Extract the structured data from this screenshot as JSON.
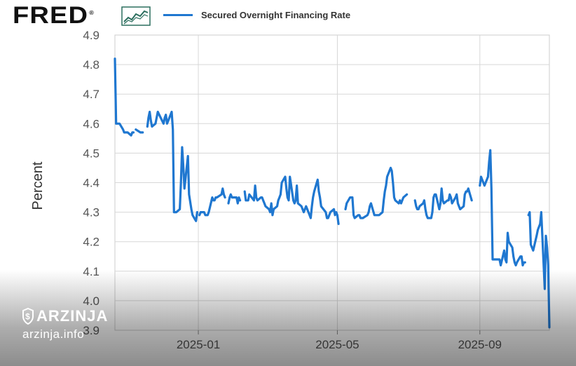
{
  "header": {
    "logo_text": "FRED",
    "logo_registered": "®",
    "logo_icon": "line-graph-icon",
    "legend_label": "Secured Overnight Financing Rate",
    "legend_color": "#1f77d0"
  },
  "watermark": {
    "brand": "ARZINJA",
    "url": "arzinja.info",
    "icon": "dollar-shield-icon"
  },
  "chart_data": {
    "type": "line",
    "title": "",
    "xlabel": "",
    "ylabel": "Percent",
    "ylim": [
      3.9,
      4.9
    ],
    "yticks": [
      "3.9",
      "4.0",
      "4.1",
      "4.2",
      "4.3",
      "4.4",
      "4.5",
      "4.6",
      "4.7",
      "4.8",
      "4.9"
    ],
    "xlim": [
      "2024-10-21",
      "2025-10-31"
    ],
    "xticks": [
      {
        "date": "2025-01-01",
        "label": "2025-01"
      },
      {
        "date": "2025-05-01",
        "label": "2025-05"
      },
      {
        "date": "2025-09-01",
        "label": "2025-09"
      }
    ],
    "grid": true,
    "legend": "top-left",
    "series": [
      {
        "name": "Secured Overnight Financing Rate",
        "color": "#1f77d0",
        "segments": [
          {
            "x": [
              "2024-10-21",
              "2024-10-22",
              "2024-10-23",
              "2024-10-24",
              "2024-10-25",
              "2024-10-28",
              "2024-10-29",
              "2024-10-30",
              "2024-10-31",
              "2024-11-01",
              "2024-11-04",
              "2024-11-05",
              "2024-11-06"
            ],
            "y": [
              4.82,
              4.6,
              4.6,
              4.6,
              4.6,
              4.58,
              4.57,
              4.57,
              4.57,
              4.57,
              4.56,
              4.57,
              4.57
            ]
          },
          {
            "x": [
              "2024-11-08",
              "2024-11-12",
              "2024-11-13",
              "2024-11-14"
            ],
            "y": [
              4.58,
              4.57,
              4.57,
              4.57
            ]
          },
          {
            "x": [
              "2024-11-18",
              "2024-11-19",
              "2024-11-20",
              "2024-11-21",
              "2024-11-22",
              "2024-11-25",
              "2024-11-26",
              "2024-11-27",
              "2024-12-02",
              "2024-12-03",
              "2024-12-04",
              "2024-12-05",
              "2024-12-06",
              "2024-12-09",
              "2024-12-10",
              "2024-12-11",
              "2024-12-12",
              "2024-12-13",
              "2024-12-16",
              "2024-12-17",
              "2024-12-18",
              "2024-12-19",
              "2024-12-20",
              "2024-12-23",
              "2024-12-24",
              "2024-12-26",
              "2024-12-27",
              "2024-12-30",
              "2024-12-31"
            ],
            "y": [
              4.59,
              4.62,
              4.64,
              4.61,
              4.59,
              4.6,
              4.62,
              4.64,
              4.6,
              4.62,
              4.63,
              4.6,
              4.61,
              4.64,
              4.58,
              4.3,
              4.3,
              4.3,
              4.31,
              4.4,
              4.52,
              4.46,
              4.38,
              4.49,
              4.36,
              4.31,
              4.29,
              4.27,
              4.3
            ]
          },
          {
            "x": [
              "2025-01-02",
              "2025-01-03",
              "2025-01-06",
              "2025-01-07",
              "2025-01-08",
              "2025-01-09",
              "2025-01-10",
              "2025-01-13",
              "2025-01-14",
              "2025-01-15",
              "2025-01-16",
              "2025-01-17",
              "2025-01-21",
              "2025-01-22",
              "2025-01-23",
              "2025-01-24"
            ],
            "y": [
              4.29,
              4.3,
              4.3,
              4.29,
              4.29,
              4.29,
              4.3,
              4.35,
              4.34,
              4.34,
              4.35,
              4.35,
              4.36,
              4.38,
              4.36,
              4.35
            ]
          },
          {
            "x": [
              "2025-01-27",
              "2025-01-28",
              "2025-01-29",
              "2025-01-30",
              "2025-01-31",
              "2025-02-03",
              "2025-02-04",
              "2025-02-05",
              "2025-02-06"
            ],
            "y": [
              4.33,
              4.35,
              4.36,
              4.35,
              4.35,
              4.35,
              4.33,
              4.35,
              4.34
            ]
          },
          {
            "x": [
              "2025-02-10",
              "2025-02-11",
              "2025-02-12",
              "2025-02-13",
              "2025-02-14",
              "2025-02-18",
              "2025-02-19",
              "2025-02-20",
              "2025-02-21",
              "2025-02-24",
              "2025-02-25",
              "2025-02-26",
              "2025-02-27",
              "2025-02-28",
              "2025-03-03",
              "2025-03-04",
              "2025-03-05",
              "2025-03-06",
              "2025-03-07",
              "2025-03-10",
              "2025-03-11",
              "2025-03-12",
              "2025-03-13",
              "2025-03-14",
              "2025-03-17",
              "2025-03-18",
              "2025-03-19",
              "2025-03-20",
              "2025-03-21",
              "2025-03-24",
              "2025-03-25",
              "2025-03-26",
              "2025-03-27",
              "2025-03-28",
              "2025-03-31",
              "2025-04-01",
              "2025-04-02",
              "2025-04-03",
              "2025-04-04",
              "2025-04-07",
              "2025-04-08",
              "2025-04-09",
              "2025-04-10",
              "2025-04-11",
              "2025-04-14",
              "2025-04-15",
              "2025-04-16",
              "2025-04-17",
              "2025-04-21",
              "2025-04-22",
              "2025-04-23",
              "2025-04-24",
              "2025-04-25",
              "2025-04-28",
              "2025-04-29",
              "2025-04-30",
              "2025-05-01",
              "2025-05-02"
            ],
            "y": [
              4.37,
              4.34,
              4.34,
              4.34,
              4.36,
              4.34,
              4.39,
              4.35,
              4.34,
              4.35,
              4.35,
              4.34,
              4.33,
              4.32,
              4.31,
              4.3,
              4.33,
              4.29,
              4.31,
              4.32,
              4.34,
              4.35,
              4.36,
              4.4,
              4.42,
              4.38,
              4.35,
              4.34,
              4.42,
              4.34,
              4.33,
              4.34,
              4.39,
              4.33,
              4.32,
              4.31,
              4.3,
              4.31,
              4.32,
              4.29,
              4.28,
              4.32,
              4.35,
              4.37,
              4.41,
              4.37,
              4.35,
              4.32,
              4.3,
              4.28,
              4.28,
              4.29,
              4.3,
              4.31,
              4.29,
              4.3,
              4.29,
              4.26
            ]
          },
          {
            "x": [
              "2025-05-08",
              "2025-05-09",
              "2025-05-12",
              "2025-05-13",
              "2025-05-14",
              "2025-05-15",
              "2025-05-16",
              "2025-05-19",
              "2025-05-20",
              "2025-05-21",
              "2025-05-22",
              "2025-05-23",
              "2025-05-27",
              "2025-05-28",
              "2025-05-29",
              "2025-05-30",
              "2025-06-02",
              "2025-06-03",
              "2025-06-04",
              "2025-06-05",
              "2025-06-06",
              "2025-06-09",
              "2025-06-10",
              "2025-06-11",
              "2025-06-12",
              "2025-06-13",
              "2025-06-16",
              "2025-06-17",
              "2025-06-18",
              "2025-06-19",
              "2025-06-20",
              "2025-06-23",
              "2025-06-24",
              "2025-06-25",
              "2025-06-26",
              "2025-06-27",
              "2025-06-30"
            ],
            "y": [
              4.31,
              4.33,
              4.35,
              4.35,
              4.35,
              4.29,
              4.28,
              4.29,
              4.29,
              4.28,
              4.28,
              4.28,
              4.29,
              4.3,
              4.32,
              4.33,
              4.29,
              4.29,
              4.29,
              4.29,
              4.29,
              4.3,
              4.34,
              4.37,
              4.39,
              4.42,
              4.45,
              4.44,
              4.4,
              4.35,
              4.34,
              4.33,
              4.34,
              4.33,
              4.34,
              4.35,
              4.36
            ]
          },
          {
            "x": [
              "2025-07-07",
              "2025-07-08",
              "2025-07-09",
              "2025-07-10",
              "2025-07-11",
              "2025-07-14",
              "2025-07-15",
              "2025-07-16",
              "2025-07-17",
              "2025-07-18",
              "2025-07-21",
              "2025-07-22",
              "2025-07-23",
              "2025-07-24",
              "2025-07-25",
              "2025-07-28",
              "2025-07-29",
              "2025-07-30",
              "2025-07-31",
              "2025-08-01",
              "2025-08-04",
              "2025-08-05",
              "2025-08-06",
              "2025-08-07",
              "2025-08-08",
              "2025-08-11",
              "2025-08-12",
              "2025-08-13",
              "2025-08-14",
              "2025-08-15",
              "2025-08-18",
              "2025-08-19",
              "2025-08-20",
              "2025-08-21",
              "2025-08-22",
              "2025-08-25"
            ],
            "y": [
              4.34,
              4.32,
              4.31,
              4.31,
              4.32,
              4.33,
              4.34,
              4.31,
              4.29,
              4.28,
              4.28,
              4.3,
              4.35,
              4.36,
              4.36,
              4.31,
              4.33,
              4.38,
              4.34,
              4.33,
              4.34,
              4.34,
              4.36,
              4.35,
              4.33,
              4.35,
              4.36,
              4.33,
              4.32,
              4.31,
              4.32,
              4.36,
              4.37,
              4.37,
              4.38,
              4.34
            ]
          },
          {
            "x": [
              "2025-09-01",
              "2025-09-02",
              "2025-09-03",
              "2025-09-04",
              "2025-09-05",
              "2025-09-08",
              "2025-09-09",
              "2025-09-10",
              "2025-09-11",
              "2025-09-12",
              "2025-09-15",
              "2025-09-16",
              "2025-09-17",
              "2025-09-18",
              "2025-09-19",
              "2025-09-22",
              "2025-09-23",
              "2025-09-24",
              "2025-09-25",
              "2025-09-26",
              "2025-09-29",
              "2025-09-30",
              "2025-10-01",
              "2025-10-02",
              "2025-10-03",
              "2025-10-06",
              "2025-10-07",
              "2025-10-08",
              "2025-10-09",
              "2025-10-10"
            ],
            "y": [
              4.39,
              4.42,
              4.41,
              4.4,
              4.39,
              4.42,
              4.47,
              4.51,
              4.38,
              4.14,
              4.14,
              4.14,
              4.14,
              4.14,
              4.12,
              4.17,
              4.14,
              4.13,
              4.23,
              4.2,
              4.18,
              4.15,
              4.13,
              4.12,
              4.13,
              4.15,
              4.15,
              4.12,
              4.13,
              4.13
            ]
          },
          {
            "x": [
              "2025-10-13",
              "2025-10-14",
              "2025-10-15",
              "2025-10-16",
              "2025-10-17",
              "2025-10-20",
              "2025-10-21",
              "2025-10-22",
              "2025-10-23",
              "2025-10-24",
              "2025-10-27",
              "2025-10-28",
              "2025-10-29",
              "2025-10-30",
              "2025-10-31"
            ],
            "y": [
              4.29,
              4.3,
              4.19,
              4.18,
              4.17,
              4.22,
              4.24,
              4.25,
              4.26,
              4.3,
              4.04,
              4.22,
              4.18,
              4.12,
              3.91
            ]
          }
        ]
      }
    ]
  }
}
